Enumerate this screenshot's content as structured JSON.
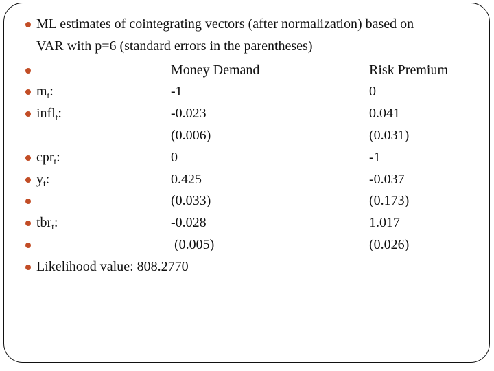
{
  "colors": {
    "bullet": "#c24d26",
    "border": "#111111",
    "background": "#ffffff",
    "text": "#111111"
  },
  "title": {
    "line1": "ML estimates of cointegrating vectors (after normalization) based on",
    "line2": "VAR with p=6 (standard errors in the parentheses)"
  },
  "table": {
    "rows": [
      {
        "bullet": true,
        "label": {
          "base": "",
          "sub": "",
          "suffix": ""
        },
        "col2": "Money Demand",
        "col3": "Risk Premium"
      },
      {
        "bullet": true,
        "label": {
          "base": "m",
          "sub": "t",
          "suffix": ":"
        },
        "col2": "-1",
        "col3": "0"
      },
      {
        "bullet": true,
        "label": {
          "base": "infl",
          "sub": "t",
          "suffix": ":"
        },
        "col2": "-0.023",
        "col3": "0.041"
      },
      {
        "bullet": false,
        "label": {
          "base": "",
          "sub": "",
          "suffix": ""
        },
        "col2": "(0.006)",
        "col3": "(0.031)"
      },
      {
        "bullet": true,
        "label": {
          "base": "cpr",
          "sub": "t",
          "suffix": ":"
        },
        "col2": "0",
        "col3": "-1"
      },
      {
        "bullet": true,
        "label": {
          "base": "y",
          "sub": "t",
          "suffix": ":"
        },
        "col2": "0.425",
        "col3": "-0.037"
      },
      {
        "bullet": true,
        "label": {
          "base": "",
          "sub": "",
          "suffix": ""
        },
        "col2": "(0.033)",
        "col3": "(0.173)"
      },
      {
        "bullet": true,
        "label": {
          "base": "tbr",
          "sub": "t",
          "suffix": ":"
        },
        "col2": "-0.028",
        "col3": "1.017"
      },
      {
        "bullet": true,
        "label": {
          "base": "",
          "sub": "",
          "suffix": ""
        },
        "col2": " (0.005)",
        "col3": "(0.026)"
      }
    ]
  },
  "likelihood": {
    "text": "Likelihood value: 808.2770"
  }
}
